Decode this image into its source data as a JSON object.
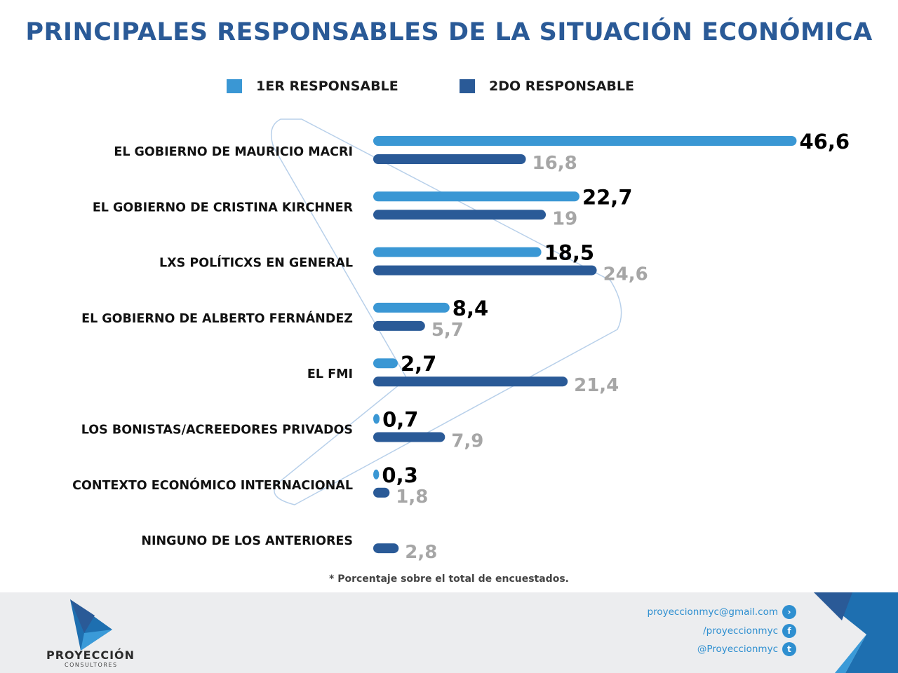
{
  "title": "PRINCIPALES RESPONSABLES DE LA SITUACIÓN ECONÓMICA",
  "note": "* Porcentaje sobre el total de encuestados.",
  "footer": {
    "brand": "PROYECCIÓN",
    "sub": "CONSULTORES",
    "email": "proyeccionmyc@gmail.com",
    "facebook": "/proyeccionmyc",
    "twitter": "@Proyeccionmyc"
  },
  "chart_data": {
    "type": "bar",
    "orientation": "horizontal",
    "unit": "%",
    "categories": [
      "EL GOBIERNO DE MAURICIO MACRI",
      "EL GOBIERNO DE CRISTINA KIRCHNER",
      "LXS POLÍTICXS EN GENERAL",
      "EL GOBIERNO DE ALBERTO FERNÁNDEZ",
      "EL FMI",
      "LOS BONISTAS/ACREEDORES PRIVADOS",
      "CONTEXTO ECONÓMICO INTERNACIONAL",
      "NINGUNO DE LOS ANTERIORES"
    ],
    "series": [
      {
        "name": "1ER RESPONSABLE",
        "color": "#3a97d4",
        "values": [
          46.6,
          22.7,
          18.5,
          8.4,
          2.7,
          0.7,
          0.3,
          null
        ],
        "labels": [
          "46,6",
          "22,7",
          "18,5",
          "8,4",
          "2,7",
          "0,7",
          "0,3",
          ""
        ]
      },
      {
        "name": "2DO RESPONSABLE",
        "color": "#2a5a97",
        "values": [
          16.8,
          19,
          24.6,
          5.7,
          21.4,
          7.9,
          1.8,
          2.8
        ],
        "labels": [
          "16,8",
          "19",
          "24,6",
          "5,7",
          "21,4",
          "7,9",
          "1,8",
          "2,8"
        ]
      }
    ],
    "legend": "top",
    "grid": false
  }
}
